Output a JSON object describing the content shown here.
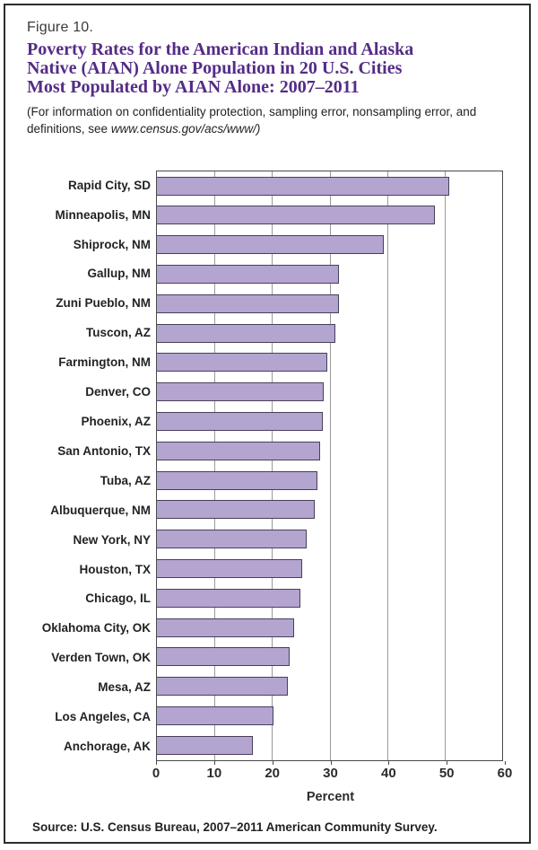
{
  "figure": {
    "label": "Figure 10.",
    "title_lines": [
      "Poverty Rates for the American Indian and Alaska",
      "Native (AIAN) Alone Population in 20 U.S. Cities",
      "Most Populated by AIAN Alone: 2007–2011"
    ],
    "note_prefix": "(For information on confidentiality protection, sampling error, nonsampling error, and definitions, see ",
    "note_url": "www.census.gov/acs/www/)"
  },
  "chart_data": {
    "type": "bar",
    "orientation": "horizontal",
    "title": "Poverty Rates for the American Indian and Alaska Native (AIAN) Alone Population in 20 U.S. Cities Most Populated by AIAN Alone: 2007-2011",
    "categories": [
      "Rapid City, SD",
      "Minneapolis, MN",
      "Shiprock, NM",
      "Gallup, NM",
      "Zuni Pueblo, NM",
      "Tuscon, AZ",
      "Farmington, NM",
      "Denver, CO",
      "Phoenix, AZ",
      "San Antonio, TX",
      "Tuba, AZ",
      "Albuquerque, NM",
      "New York, NY",
      "Houston, TX",
      "Chicago, IL",
      "Oklahoma City, OK",
      "Verden Town, OK",
      "Mesa, AZ",
      "Los Angeles, CA",
      "Anchorage, AK"
    ],
    "values": [
      50.8,
      48.3,
      39.5,
      31.7,
      31.6,
      31.0,
      29.6,
      29.0,
      28.9,
      28.4,
      27.9,
      27.4,
      26.1,
      25.3,
      25.0,
      23.9,
      23.0,
      22.8,
      20.3,
      16.6
    ],
    "xlabel": "Percent",
    "ylabel": "",
    "xlim": [
      0,
      60
    ],
    "xticks": [
      0,
      10,
      20,
      30,
      40,
      50,
      60
    ],
    "grid": "vertical",
    "legend": "none",
    "bar_color": "#b3a4d0",
    "bar_border_color": "#47405a"
  },
  "source": {
    "text": "Source: U.S. Census Bureau, 2007–2011 American Community Survey."
  },
  "colors": {
    "title_purple": "#542c87",
    "page_border": "#2d2d2d",
    "gridline": "#9a9a9a",
    "text": "#2b2b2b"
  }
}
